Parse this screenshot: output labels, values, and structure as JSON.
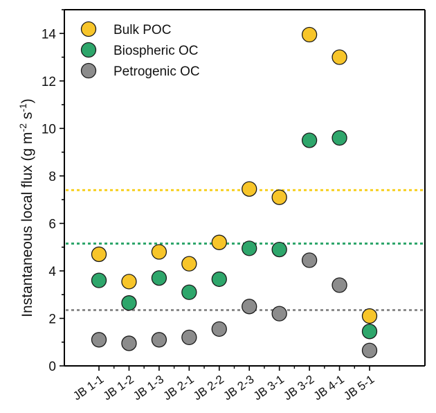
{
  "chart_data": {
    "type": "scatter",
    "categories": [
      "JB 1-1",
      "JB 1-2",
      "JB 1-3",
      "JB 2-1",
      "JB 2-2",
      "JB 2-3",
      "JB 3-1",
      "JB 3-2",
      "JB 4-1",
      "JB 5-1"
    ],
    "ylabel": "Instantaneous local flux (g m-2 s-1)",
    "ylabel_parts": {
      "main": "Instantaneous local flux (g m",
      "sup1": "-2",
      "mid": " s",
      "sup2": "-1",
      "end": ")"
    },
    "xlabel": "",
    "ylim": [
      0,
      15
    ],
    "yticks": [
      0,
      2,
      4,
      6,
      8,
      10,
      12,
      14
    ],
    "legend_position": "top-left",
    "series": [
      {
        "name": "Bulk POC",
        "color": "#F7C52A",
        "values": [
          4.7,
          3.55,
          4.8,
          4.3,
          5.2,
          7.45,
          7.1,
          13.95,
          13.0,
          2.1
        ]
      },
      {
        "name": "Biospheric OC",
        "color": "#2EA66B",
        "values": [
          3.6,
          2.65,
          3.7,
          3.1,
          3.65,
          4.95,
          4.9,
          9.5,
          9.6,
          1.45
        ]
      },
      {
        "name": "Petrogenic OC",
        "color": "#8C8C8C",
        "values": [
          1.1,
          0.95,
          1.1,
          1.2,
          1.55,
          2.5,
          2.2,
          4.45,
          3.4,
          0.65
        ]
      }
    ],
    "reference_lines": [
      {
        "series": "Bulk POC",
        "value": 7.4,
        "color": "#F7D023"
      },
      {
        "series": "Biospheric OC",
        "value": 5.15,
        "color": "#2EA66B"
      },
      {
        "series": "Petrogenic OC",
        "value": 2.35,
        "color": "#8C8C8C"
      }
    ]
  }
}
